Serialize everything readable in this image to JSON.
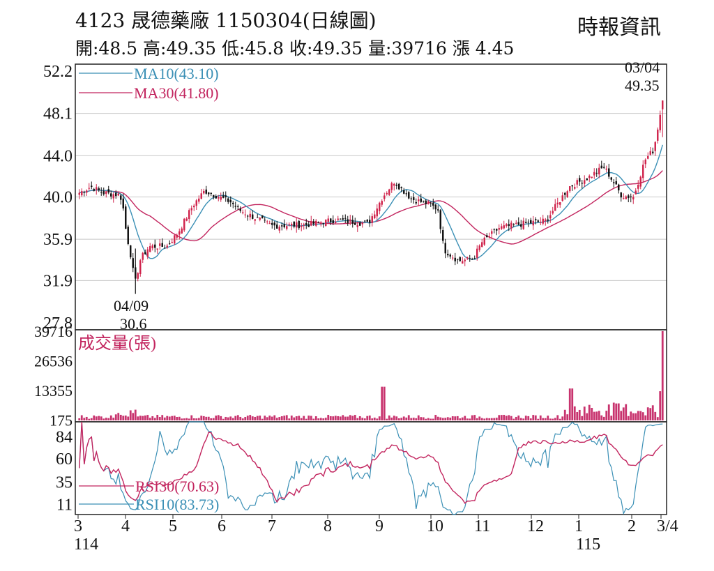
{
  "header": {
    "title": "4123 晟德藥廠 1150304(日線圖)",
    "source": "時報資訊",
    "stats": "開:48.5 高:49.35 低:45.8 收:49.35 量:39716 漲 4.45"
  },
  "chart_data": {
    "type": "candlestick",
    "price_panel": {
      "yticks": [
        "52.2",
        "48.1",
        "44.0",
        "40.0",
        "35.9",
        "31.9",
        "27.8"
      ],
      "ylim": [
        27.8,
        52.2
      ],
      "legend": [
        {
          "label": "MA10(43.10)",
          "color": "#3a8fb5"
        },
        {
          "label": "MA30(41.80)",
          "color": "#c2245e"
        }
      ],
      "annotations": [
        {
          "date": "04/09",
          "value": "30.6",
          "type": "low"
        },
        {
          "date": "03/04",
          "value": "49.35",
          "type": "high"
        }
      ]
    },
    "volume_panel": {
      "title": "成交量(張)",
      "yticks": [
        "39716",
        "26536",
        "13355",
        "175"
      ],
      "ylim": [
        0,
        39716
      ]
    },
    "rsi_panel": {
      "yticks": [
        "84",
        "60",
        "35",
        "11"
      ],
      "ylim": [
        0,
        100
      ],
      "legend": [
        {
          "label": "RSI30(70.63)",
          "color": "#c2245e"
        },
        {
          "label": "RSI10(83.73)",
          "color": "#3a8fb5"
        }
      ]
    },
    "x_axis": {
      "months": [
        "3",
        "4",
        "5",
        "6",
        "7",
        "8",
        "9",
        "10",
        "11",
        "12",
        "1",
        "2",
        "3/4"
      ],
      "years": [
        "114",
        "115"
      ]
    },
    "colors": {
      "up": "#d0244c",
      "down": "#111111",
      "ma10": "#3a8fb5",
      "ma30": "#c2245e",
      "volume": "#c8336e",
      "grid": "#c8c8c8"
    }
  }
}
